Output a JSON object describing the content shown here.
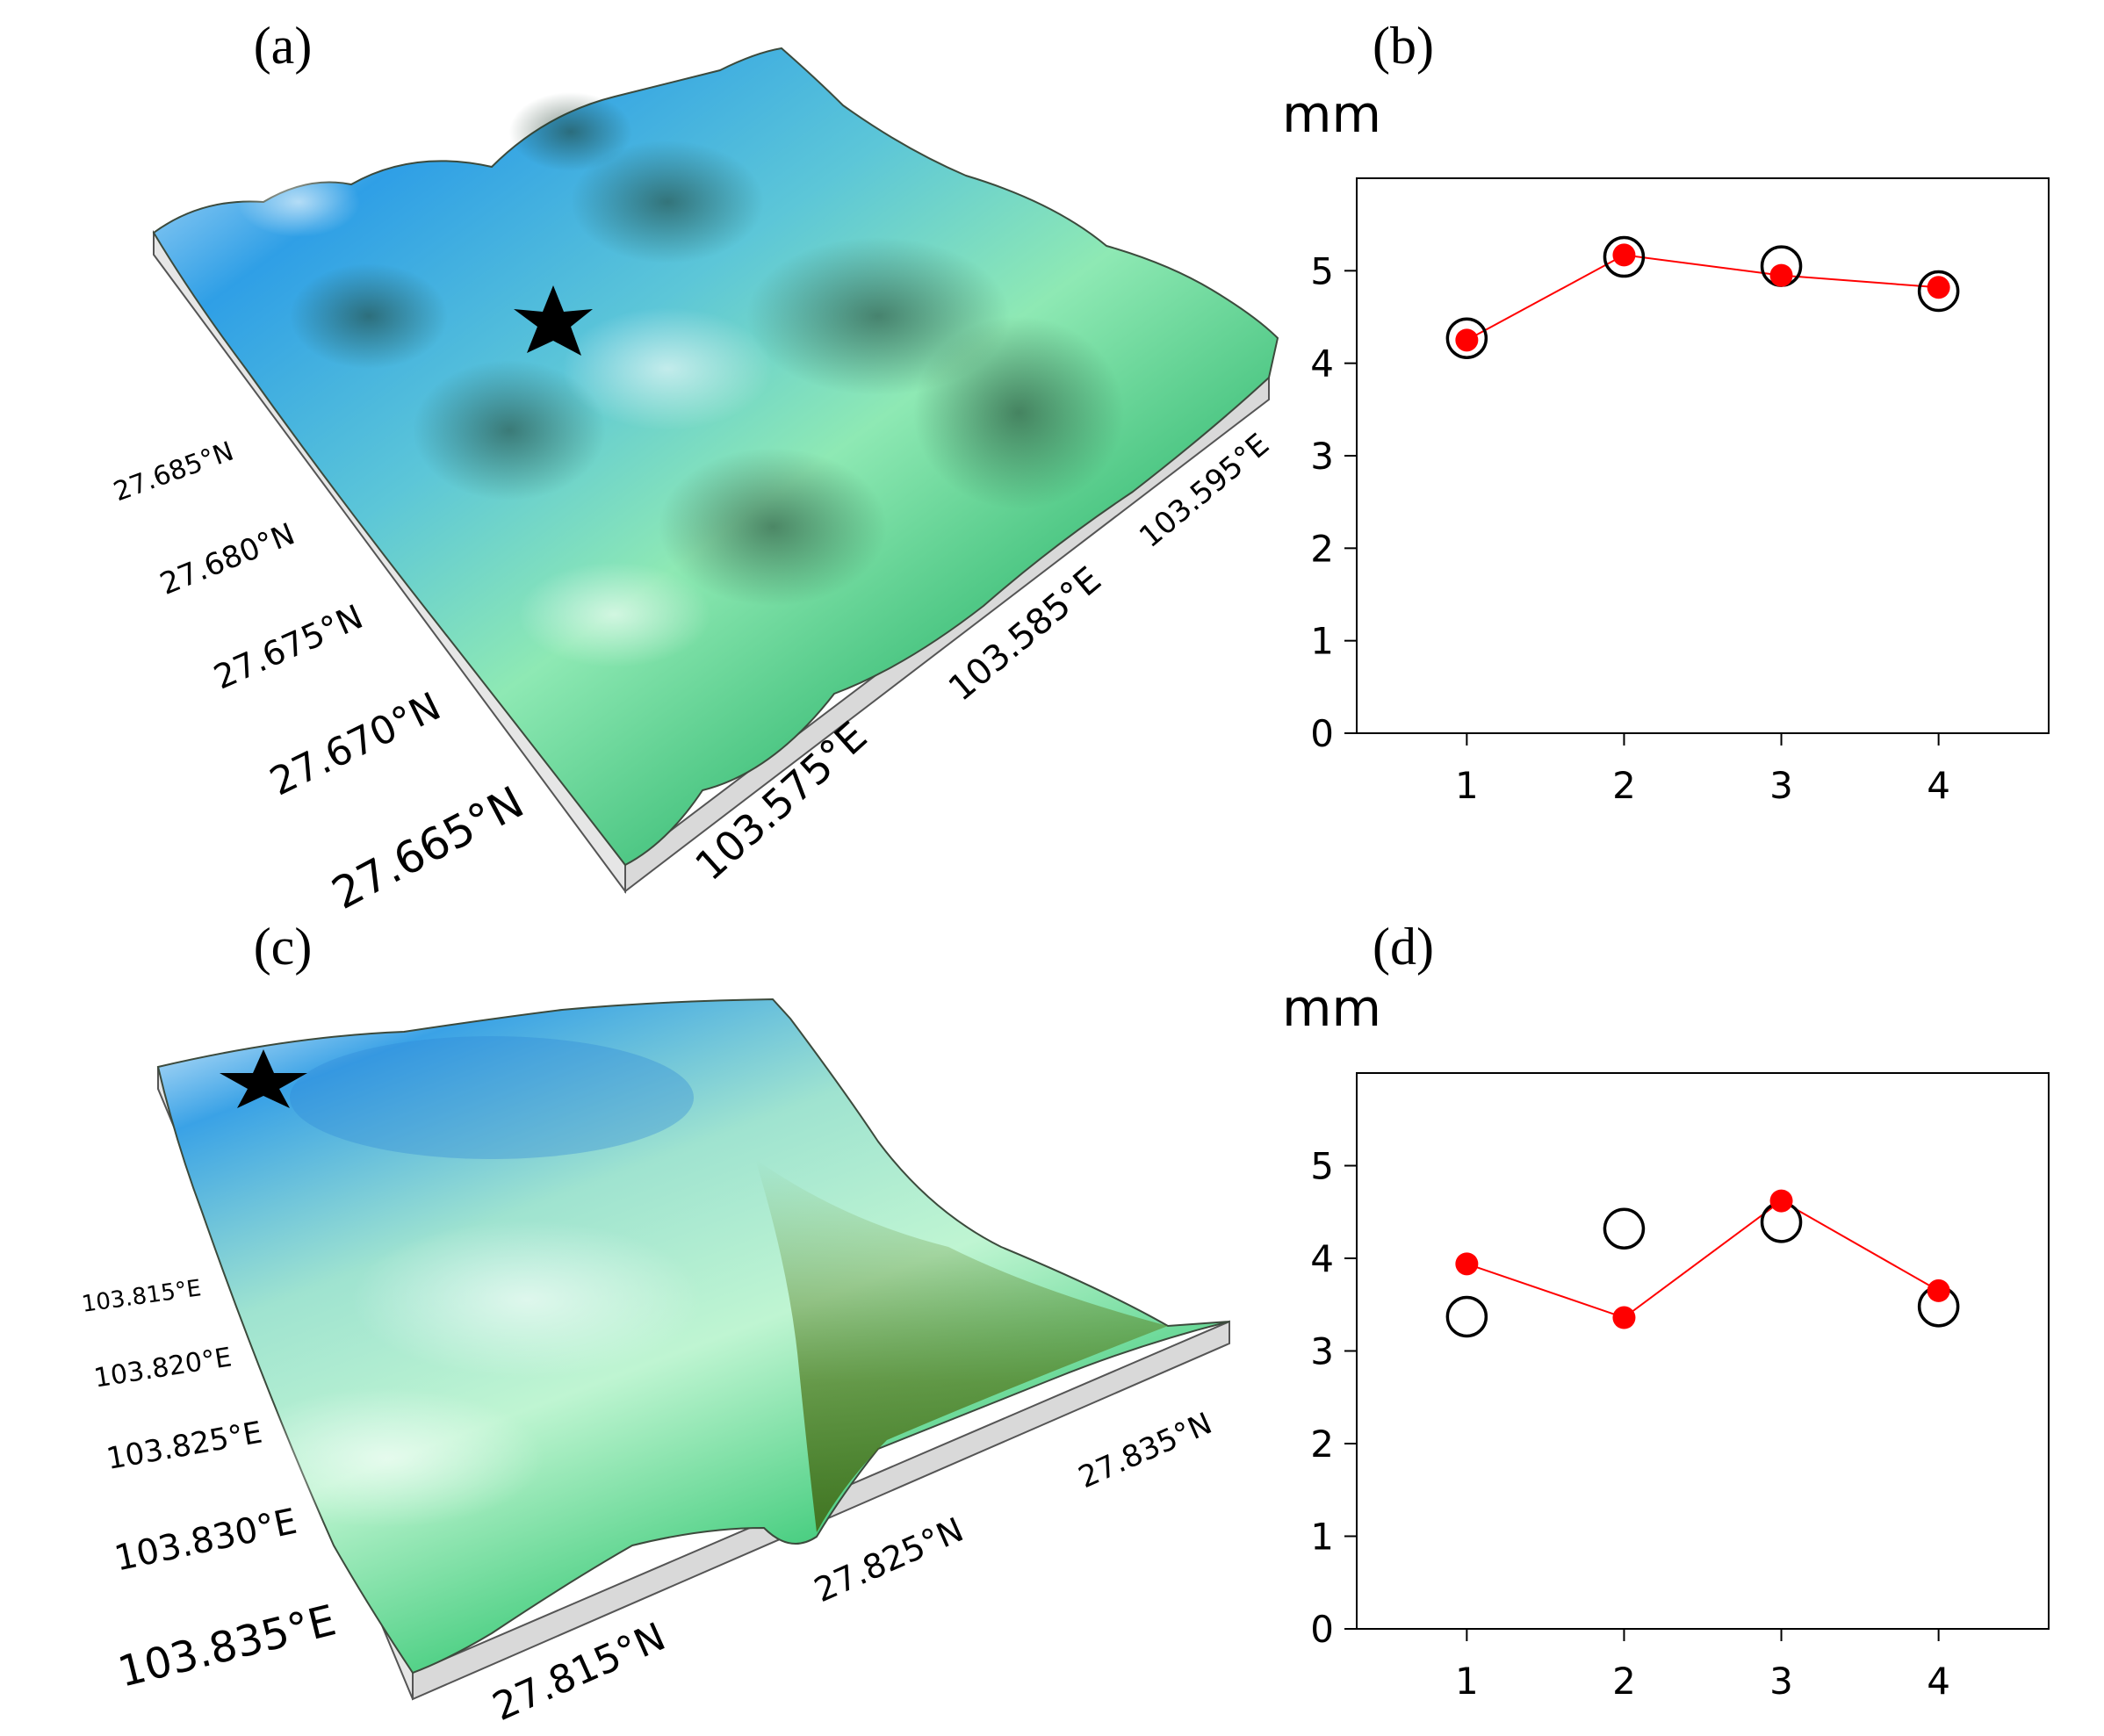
{
  "panels": [
    {
      "label": "(a)"
    },
    {
      "label": "(b)"
    },
    {
      "label": "(c)"
    },
    {
      "label": "(d)"
    }
  ],
  "terrain_a": {
    "lat_labels": [
      "27.685°N",
      "27.680°N",
      "27.675°N",
      "27.670°N",
      "27.665°N"
    ],
    "lon_labels": [
      "103.575°E",
      "103.585°E",
      "103.595°E"
    ],
    "marker": "star-icon"
  },
  "terrain_c": {
    "lon_labels": [
      "103.815°E",
      "103.820°E",
      "103.825°E",
      "103.830°E",
      "103.835°E"
    ],
    "lat_labels": [
      "27.815°N",
      "27.825°N",
      "27.835°N"
    ],
    "marker": "star-icon"
  },
  "colors": {
    "series_red": "#ff0000",
    "circle_black": "#000000"
  },
  "chart_data": [
    {
      "panel": "(b)",
      "type": "scatter",
      "ylabel": "mm",
      "x": [
        1,
        2,
        3,
        4
      ],
      "xlim": [
        0.3,
        4.7
      ],
      "ylim": [
        0,
        6
      ],
      "yticks": [
        0,
        1,
        2,
        3,
        4,
        5
      ],
      "xticks": [
        1,
        2,
        3,
        4
      ],
      "series": [
        {
          "name": "red-dots",
          "style": "filled-red-line",
          "values": [
            4.25,
            5.17,
            4.95,
            4.82
          ]
        },
        {
          "name": "open-circles",
          "style": "open-black",
          "values": [
            4.27,
            5.15,
            5.05,
            4.78
          ]
        }
      ]
    },
    {
      "panel": "(d)",
      "type": "scatter",
      "ylabel": "mm",
      "x": [
        1,
        2,
        3,
        4
      ],
      "xlim": [
        0.3,
        4.7
      ],
      "ylim": [
        0,
        6
      ],
      "yticks": [
        0,
        1,
        2,
        3,
        4,
        5
      ],
      "xticks": [
        1,
        2,
        3,
        4
      ],
      "series": [
        {
          "name": "red-dots",
          "style": "filled-red-line",
          "values": [
            3.94,
            3.36,
            4.62,
            3.65
          ]
        },
        {
          "name": "open-circles",
          "style": "open-black",
          "values": [
            3.37,
            4.32,
            4.39,
            3.48
          ]
        }
      ]
    }
  ]
}
